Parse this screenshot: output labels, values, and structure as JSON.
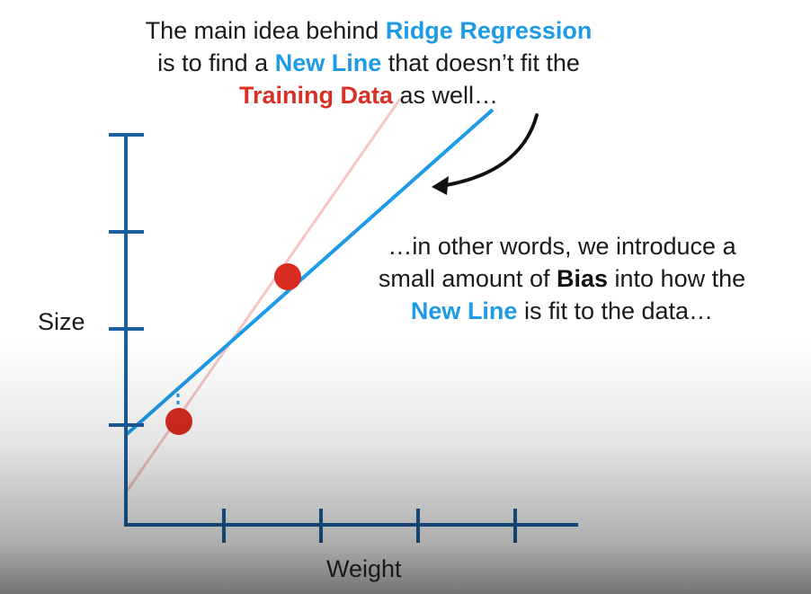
{
  "caption_top": {
    "line1_pre": "The main idea behind ",
    "line1_hl": "Ridge Regression",
    "line2_pre": "is to find a ",
    "line2_hl": "New Line",
    "line2_post": " that doesn’t fit the",
    "line3_hl": "Training Data",
    "line3_post": " as well…"
  },
  "caption_mid": {
    "line1": "…in other words, we introduce a",
    "line2_pre": "small amount of ",
    "line2_bold": "Bias",
    "line2_post": " into how the",
    "line3_hl": "New Line",
    "line3_post": " is fit to the data…"
  },
  "axes": {
    "ylabel": "Size",
    "xlabel": "Weight"
  },
  "colors": {
    "axis": "#1b5e9e",
    "new_line": "#1d9be6",
    "old_line": "#f5c6c3",
    "points": "#d92b20",
    "highlight_blue": "#1d9be6",
    "highlight_red": "#d93025"
  },
  "icons": {
    "arrow": "curved-arrow-icon"
  }
}
